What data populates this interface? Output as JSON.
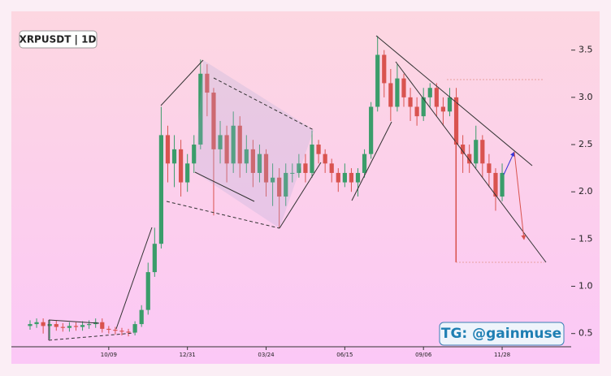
{
  "chart_data": {
    "type": "candlestick",
    "title": "XRPUSDT | 1D",
    "watermark": "TG: @gainmuse",
    "categories": [
      null,
      null,
      null,
      null,
      null,
      null,
      null,
      null,
      null,
      null,
      null,
      null,
      "10/09",
      null,
      null,
      null,
      null,
      null,
      null,
      null,
      null,
      null,
      null,
      null,
      "12/31",
      null,
      null,
      null,
      null,
      null,
      null,
      null,
      null,
      null,
      null,
      null,
      "03/24",
      null,
      null,
      null,
      null,
      null,
      null,
      null,
      null,
      null,
      null,
      null,
      "06/15",
      null,
      null,
      null,
      null,
      null,
      null,
      null,
      null,
      null,
      null,
      null,
      "09/06",
      null,
      null,
      null,
      null,
      null,
      null,
      null,
      null,
      null,
      null,
      null,
      "11/28"
    ],
    "open": [
      0.58,
      0.6,
      0.62,
      0.58,
      0.6,
      0.57,
      0.56,
      0.58,
      0.57,
      0.59,
      0.6,
      0.62,
      0.55,
      0.54,
      0.53,
      0.52,
      0.51,
      0.6,
      0.75,
      1.15,
      1.45,
      2.6,
      2.3,
      2.45,
      2.1,
      2.3,
      2.5,
      3.25,
      3.05,
      2.45,
      2.6,
      2.3,
      2.7,
      2.3,
      2.45,
      2.2,
      2.4,
      2.1,
      2.15,
      1.95,
      2.2,
      2.2,
      2.3,
      2.2,
      2.5,
      2.4,
      2.3,
      2.2,
      2.1,
      2.2,
      2.1,
      2.2,
      2.4,
      2.9,
      3.45,
      3.15,
      2.9,
      3.2,
      3.0,
      2.9,
      2.8,
      3.0,
      3.1,
      2.9,
      2.85,
      3.0,
      2.5,
      2.4,
      2.3,
      2.55,
      2.3,
      2.2,
      1.95
    ],
    "high": [
      0.64,
      0.66,
      0.66,
      0.64,
      0.64,
      0.61,
      0.62,
      0.62,
      0.63,
      0.64,
      0.66,
      0.66,
      0.58,
      0.57,
      0.56,
      0.55,
      0.63,
      0.8,
      1.25,
      1.62,
      2.9,
      2.7,
      2.6,
      2.55,
      2.4,
      2.6,
      3.4,
      3.35,
      3.1,
      2.75,
      2.7,
      2.85,
      2.8,
      2.6,
      2.55,
      2.5,
      2.45,
      2.3,
      2.25,
      2.3,
      2.3,
      2.4,
      2.4,
      2.65,
      2.55,
      2.45,
      2.35,
      2.25,
      2.3,
      2.25,
      2.25,
      2.45,
      2.95,
      3.65,
      3.5,
      3.3,
      3.35,
      3.25,
      3.1,
      3.0,
      3.1,
      3.15,
      3.15,
      3.0,
      3.1,
      3.1,
      2.6,
      2.5,
      2.7,
      2.6,
      2.4,
      2.25,
      2.3
    ],
    "low": [
      0.54,
      0.56,
      0.5,
      0.44,
      0.53,
      0.52,
      0.52,
      0.53,
      0.53,
      0.55,
      0.56,
      0.51,
      0.5,
      0.49,
      0.48,
      0.47,
      0.48,
      0.57,
      0.7,
      1.1,
      1.4,
      2.1,
      2.05,
      1.95,
      2.0,
      2.2,
      2.45,
      2.8,
      1.75,
      2.3,
      2.1,
      2.2,
      2.15,
      2.2,
      2.05,
      2.1,
      1.95,
      1.85,
      1.62,
      1.85,
      2.1,
      2.15,
      2.1,
      2.15,
      2.3,
      2.2,
      2.1,
      2.0,
      2.05,
      2.0,
      1.95,
      2.15,
      2.35,
      2.85,
      3.0,
      2.75,
      2.85,
      2.9,
      2.75,
      2.7,
      2.75,
      2.9,
      2.8,
      2.7,
      2.8,
      1.25,
      2.2,
      2.2,
      2.25,
      2.15,
      2.05,
      1.8,
      1.9
    ],
    "close": [
      0.6,
      0.62,
      0.58,
      0.6,
      0.57,
      0.56,
      0.58,
      0.57,
      0.59,
      0.6,
      0.62,
      0.55,
      0.54,
      0.53,
      0.52,
      0.51,
      0.6,
      0.75,
      1.15,
      1.45,
      2.6,
      2.3,
      2.45,
      2.1,
      2.3,
      2.5,
      3.25,
      3.05,
      2.45,
      2.6,
      2.3,
      2.7,
      2.3,
      2.45,
      2.2,
      2.4,
      2.1,
      2.15,
      1.95,
      2.2,
      2.2,
      2.3,
      2.2,
      2.5,
      2.4,
      2.3,
      2.2,
      2.1,
      2.2,
      2.1,
      2.2,
      2.4,
      2.9,
      3.45,
      3.15,
      2.9,
      3.2,
      3.0,
      2.9,
      2.8,
      3.0,
      3.1,
      2.9,
      2.85,
      3.0,
      2.5,
      2.4,
      2.3,
      2.55,
      2.3,
      2.2,
      1.95,
      2.2
    ],
    "up_color": "#3a9d6a",
    "down_color": "#d9534f",
    "ylim": [
      0.36,
      3.91
    ],
    "yticks": [
      0.5,
      {
        "value": 1,
        "label": "1.0"
      },
      1.5,
      {
        "value": 2,
        "label": "2.0"
      },
      2.5,
      {
        "value": 3,
        "label": "3.0"
      },
      3.5
    ]
  }
}
